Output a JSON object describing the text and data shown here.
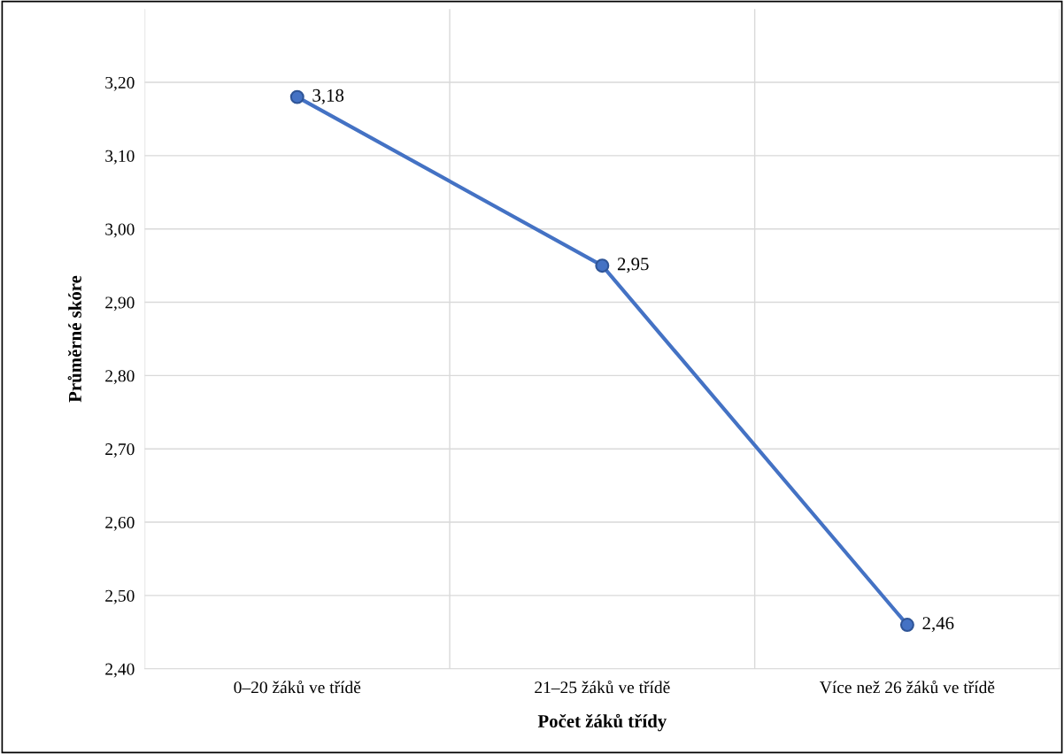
{
  "chart_data": {
    "type": "line",
    "xlabel": "Počet žáků třídy",
    "ylabel": "Průměrné skóre",
    "categories": [
      "0–20 žáků ve třídě",
      "21–25 žáků ve třídě",
      "Více než 26 žáků ve třídě"
    ],
    "series": [
      {
        "color": "#4472c4",
        "values": [
          3.18,
          2.95,
          2.46
        ],
        "value_labels": [
          "3,18",
          "2,95",
          "2,46"
        ]
      }
    ],
    "ylim": [
      2.4,
      3.3
    ],
    "yticks": [
      {
        "value": 2.4,
        "label": "2,40"
      },
      {
        "value": 2.5,
        "label": "2,50"
      },
      {
        "value": 2.6,
        "label": "2,60"
      },
      {
        "value": 2.7,
        "label": "2,70"
      },
      {
        "value": 2.8,
        "label": "2,80"
      },
      {
        "value": 2.9,
        "label": "2,90"
      },
      {
        "value": 3.0,
        "label": "3,00"
      },
      {
        "value": 3.1,
        "label": "3,10"
      },
      {
        "value": 3.2,
        "label": "3,20"
      }
    ],
    "grid": true,
    "marker": "circle",
    "line_style": "solid",
    "legend": false
  }
}
